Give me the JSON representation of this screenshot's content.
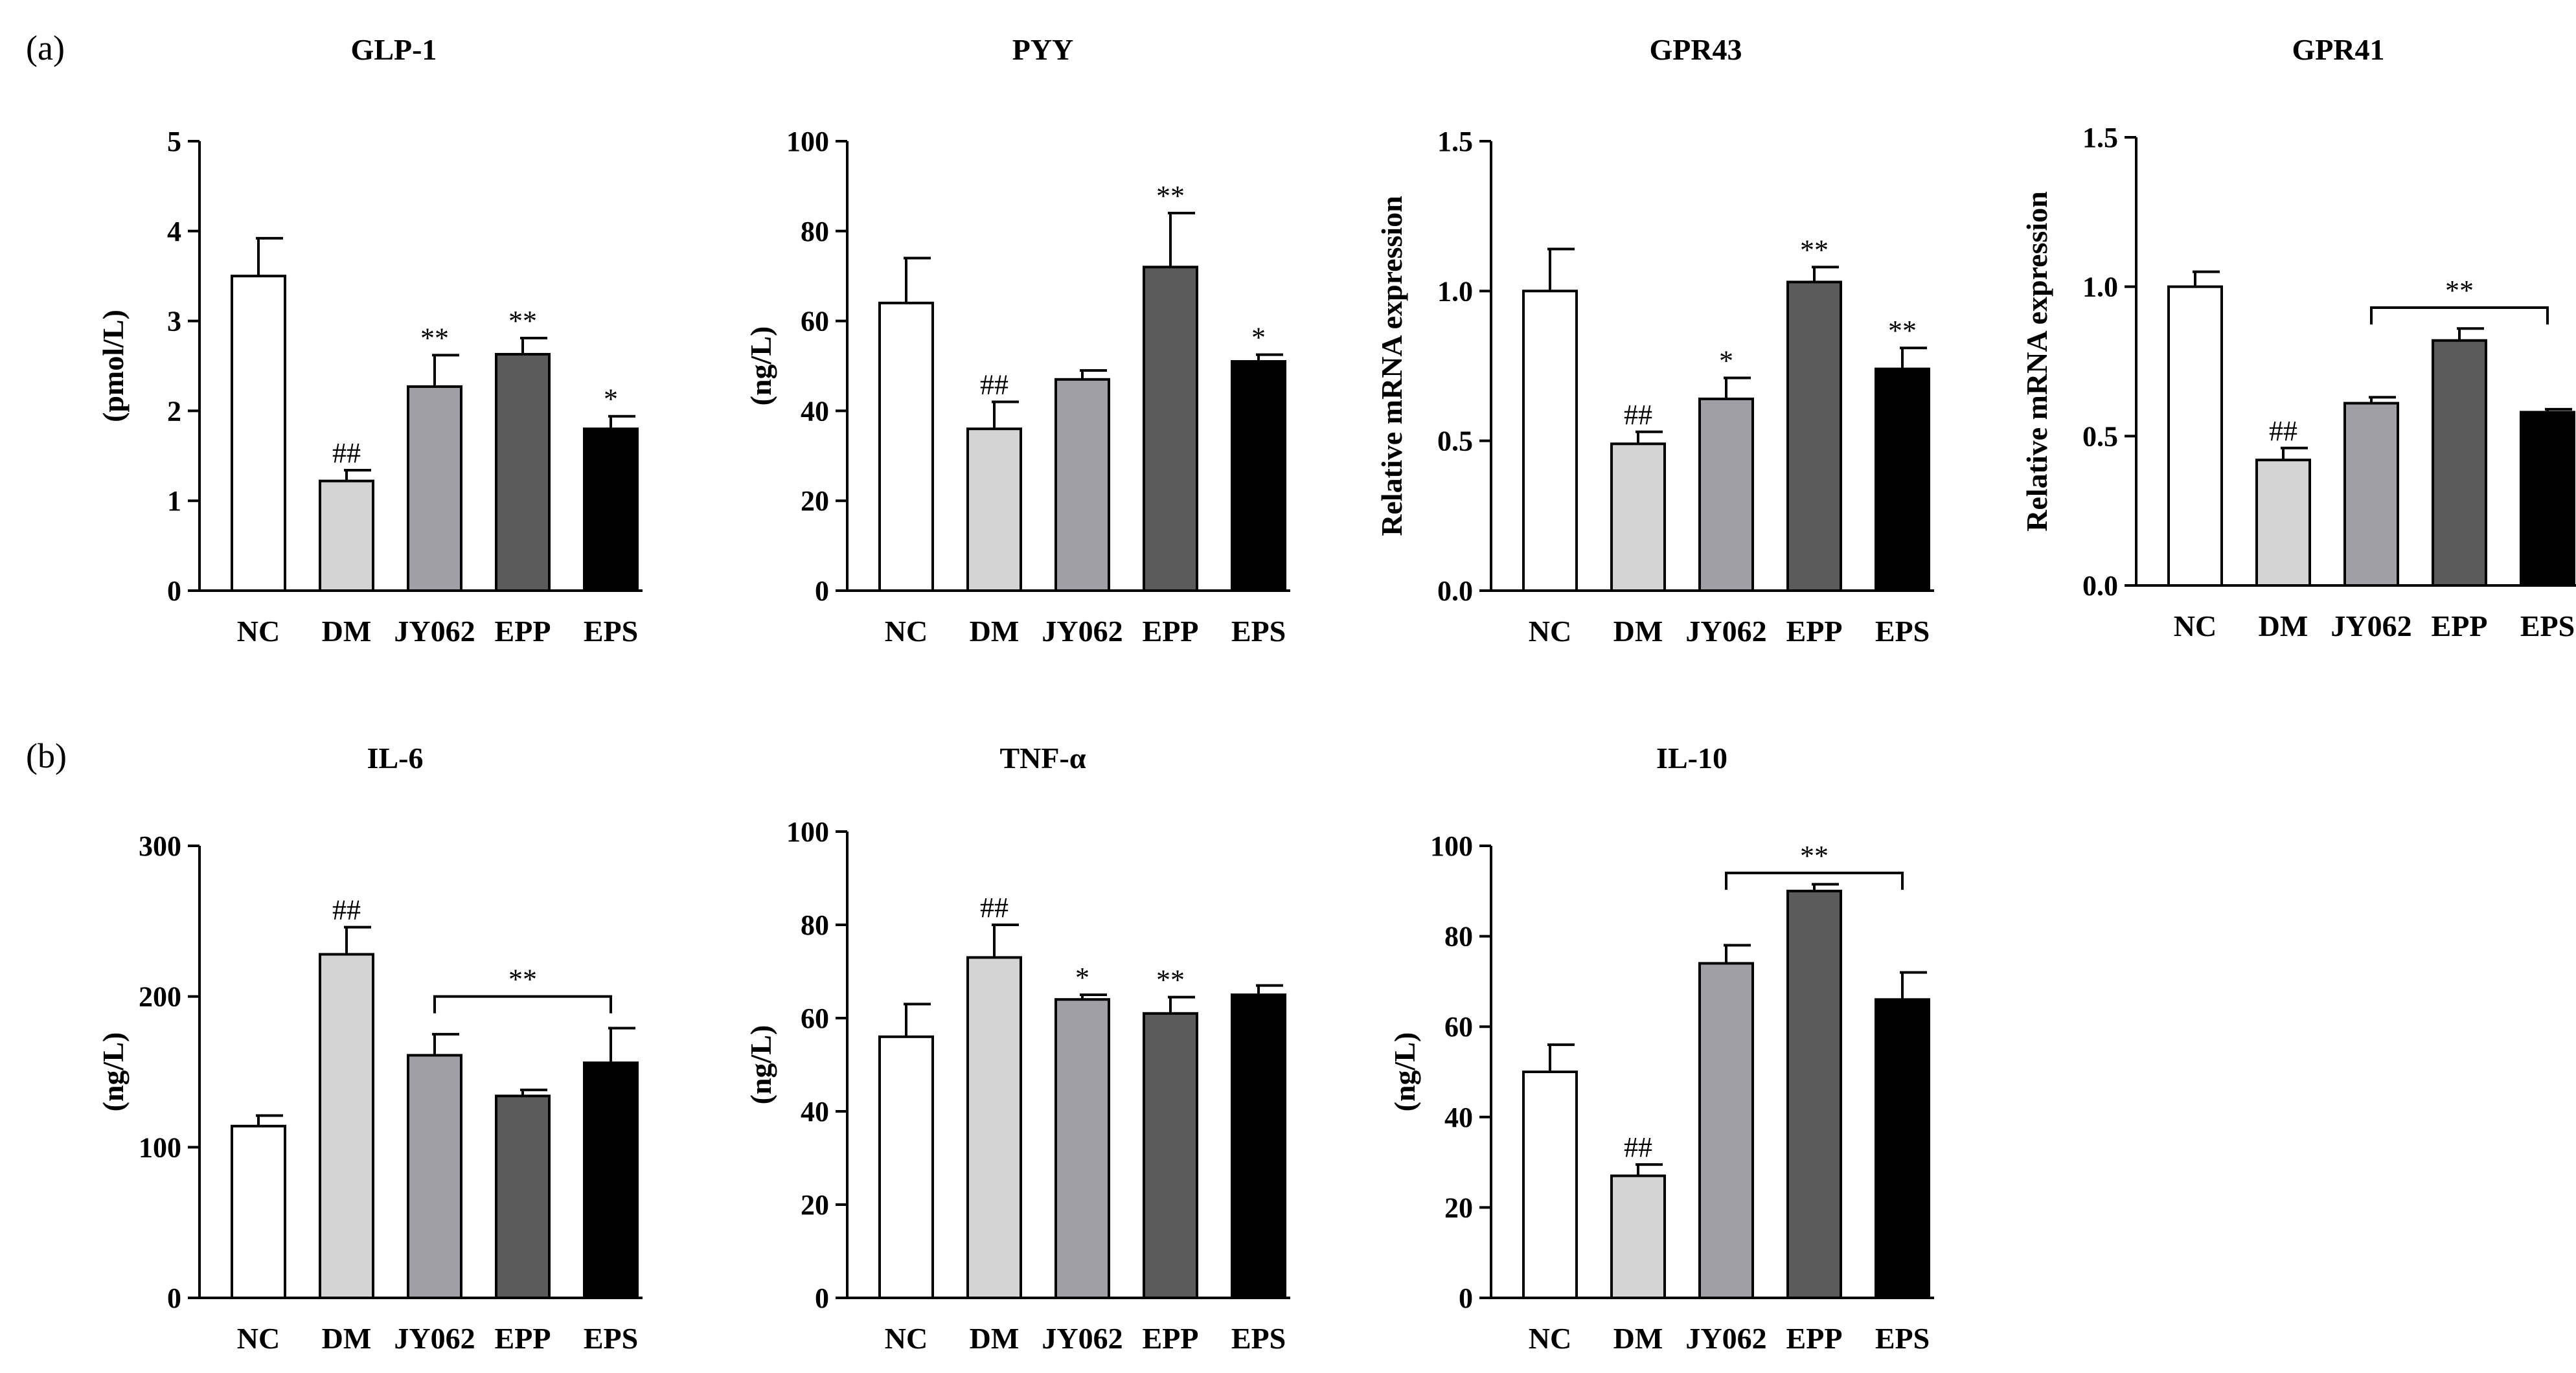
{
  "panels": [
    {
      "letter": "(a)"
    },
    {
      "letter": "(b)"
    }
  ],
  "colors": {
    "NC": "#ffffff",
    "DM": "#d4d4d4",
    "JY062": "#a09fa6",
    "EPP": "#5b5b5b",
    "EPS": "#000000"
  },
  "chart_data": [
    {
      "type": "bar",
      "panel": "a",
      "title": "GLP-1",
      "ylabel": "(pmol/L)",
      "categories": [
        "NC",
        "DM",
        "JY062",
        "EPP",
        "EPS"
      ],
      "values": [
        3.5,
        1.22,
        2.27,
        2.63,
        1.8
      ],
      "errors": [
        0.42,
        0.12,
        0.35,
        0.18,
        0.14
      ],
      "ylim": [
        0,
        5
      ],
      "yticks": [
        0,
        1,
        2,
        3,
        4,
        5
      ],
      "tick_labels": [
        "0",
        "1",
        "2",
        "3",
        "4",
        "5"
      ],
      "annotations": [
        "",
        "##",
        "**",
        "**",
        "*"
      ],
      "bracket": null
    },
    {
      "type": "bar",
      "panel": "a",
      "title": "PYY",
      "ylabel": "(ng/L)",
      "categories": [
        "NC",
        "DM",
        "JY062",
        "EPP",
        "EPS"
      ],
      "values": [
        64,
        36,
        47,
        72,
        51
      ],
      "errors": [
        10,
        6,
        2,
        12,
        1.5
      ],
      "ylim": [
        0,
        100
      ],
      "yticks": [
        0,
        20,
        40,
        60,
        80,
        100
      ],
      "tick_labels": [
        "0",
        "20",
        "40",
        "60",
        "80",
        "100"
      ],
      "annotations": [
        "",
        "##",
        "",
        "**",
        "*"
      ],
      "bracket": null
    },
    {
      "type": "bar",
      "panel": "a",
      "title": "GPR43",
      "ylabel": "Relative mRNA expression",
      "categories": [
        "NC",
        "DM",
        "JY062",
        "EPP",
        "EPS"
      ],
      "values": [
        1.0,
        0.49,
        0.64,
        1.03,
        0.74
      ],
      "errors": [
        0.14,
        0.04,
        0.07,
        0.05,
        0.07
      ],
      "ylim": [
        0,
        1.5
      ],
      "yticks": [
        0,
        0.5,
        1.0,
        1.5
      ],
      "tick_labels": [
        "0.0",
        "0.5",
        "1.0",
        "1.5"
      ],
      "annotations": [
        "",
        "##",
        "*",
        "**",
        "**"
      ],
      "bracket": null
    },
    {
      "type": "bar",
      "panel": "a",
      "title": "GPR41",
      "ylabel": "Relative mRNA expression",
      "categories": [
        "NC",
        "DM",
        "JY062",
        "EPP",
        "EPS"
      ],
      "values": [
        1.0,
        0.42,
        0.61,
        0.82,
        0.58
      ],
      "errors": [
        0.05,
        0.04,
        0.02,
        0.04,
        0.01
      ],
      "ylim": [
        0,
        1.5
      ],
      "yticks": [
        0,
        0.5,
        1.0,
        1.5
      ],
      "tick_labels": [
        "0.0",
        "0.5",
        "1.0",
        "1.5"
      ],
      "annotations": [
        "",
        "##",
        "",
        "",
        ""
      ],
      "bracket": {
        "from": 2,
        "to": 4,
        "y": 0.93,
        "label": "**"
      }
    },
    {
      "type": "bar",
      "panel": "b",
      "title": "IL-6",
      "ylabel": "(ng/L)",
      "categories": [
        "NC",
        "DM",
        "JY062",
        "EPP",
        "EPS"
      ],
      "values": [
        114,
        228,
        161,
        134,
        156
      ],
      "errors": [
        7,
        18,
        14,
        4,
        23
      ],
      "ylim": [
        0,
        300
      ],
      "yticks": [
        0,
        100,
        200,
        300
      ],
      "tick_labels": [
        "0",
        "100",
        "200",
        "300"
      ],
      "annotations": [
        "",
        "##",
        "",
        "",
        ""
      ],
      "bracket": {
        "from": 2,
        "to": 4,
        "y": 200,
        "label": "**"
      }
    },
    {
      "type": "bar",
      "panel": "b",
      "title": "TNF-α",
      "ylabel": "(ng/L)",
      "categories": [
        "NC",
        "DM",
        "JY062",
        "EPP",
        "EPS"
      ],
      "values": [
        56,
        73,
        64,
        61,
        65
      ],
      "errors": [
        7,
        7,
        1,
        3.5,
        2
      ],
      "ylim": [
        0,
        100
      ],
      "yticks": [
        0,
        20,
        40,
        60,
        80,
        100
      ],
      "tick_labels": [
        "0",
        "20",
        "40",
        "60",
        "80",
        "100"
      ],
      "annotations": [
        "",
        "##",
        "*",
        "**",
        ""
      ],
      "bracket": null
    },
    {
      "type": "bar",
      "panel": "b",
      "title": "IL-10",
      "ylabel": "(ng/L)",
      "categories": [
        "NC",
        "DM",
        "JY062",
        "EPP",
        "EPS"
      ],
      "values": [
        50,
        27,
        74,
        90,
        66
      ],
      "errors": [
        6,
        2.5,
        4,
        1.5,
        6
      ],
      "ylim": [
        0,
        100
      ],
      "yticks": [
        0,
        20,
        40,
        60,
        80,
        100
      ],
      "tick_labels": [
        "0",
        "20",
        "40",
        "60",
        "80",
        "100"
      ],
      "annotations": [
        "",
        "##",
        "",
        "",
        ""
      ],
      "bracket": {
        "from": 2,
        "to": 4,
        "y": 94,
        "label": "**"
      }
    }
  ]
}
